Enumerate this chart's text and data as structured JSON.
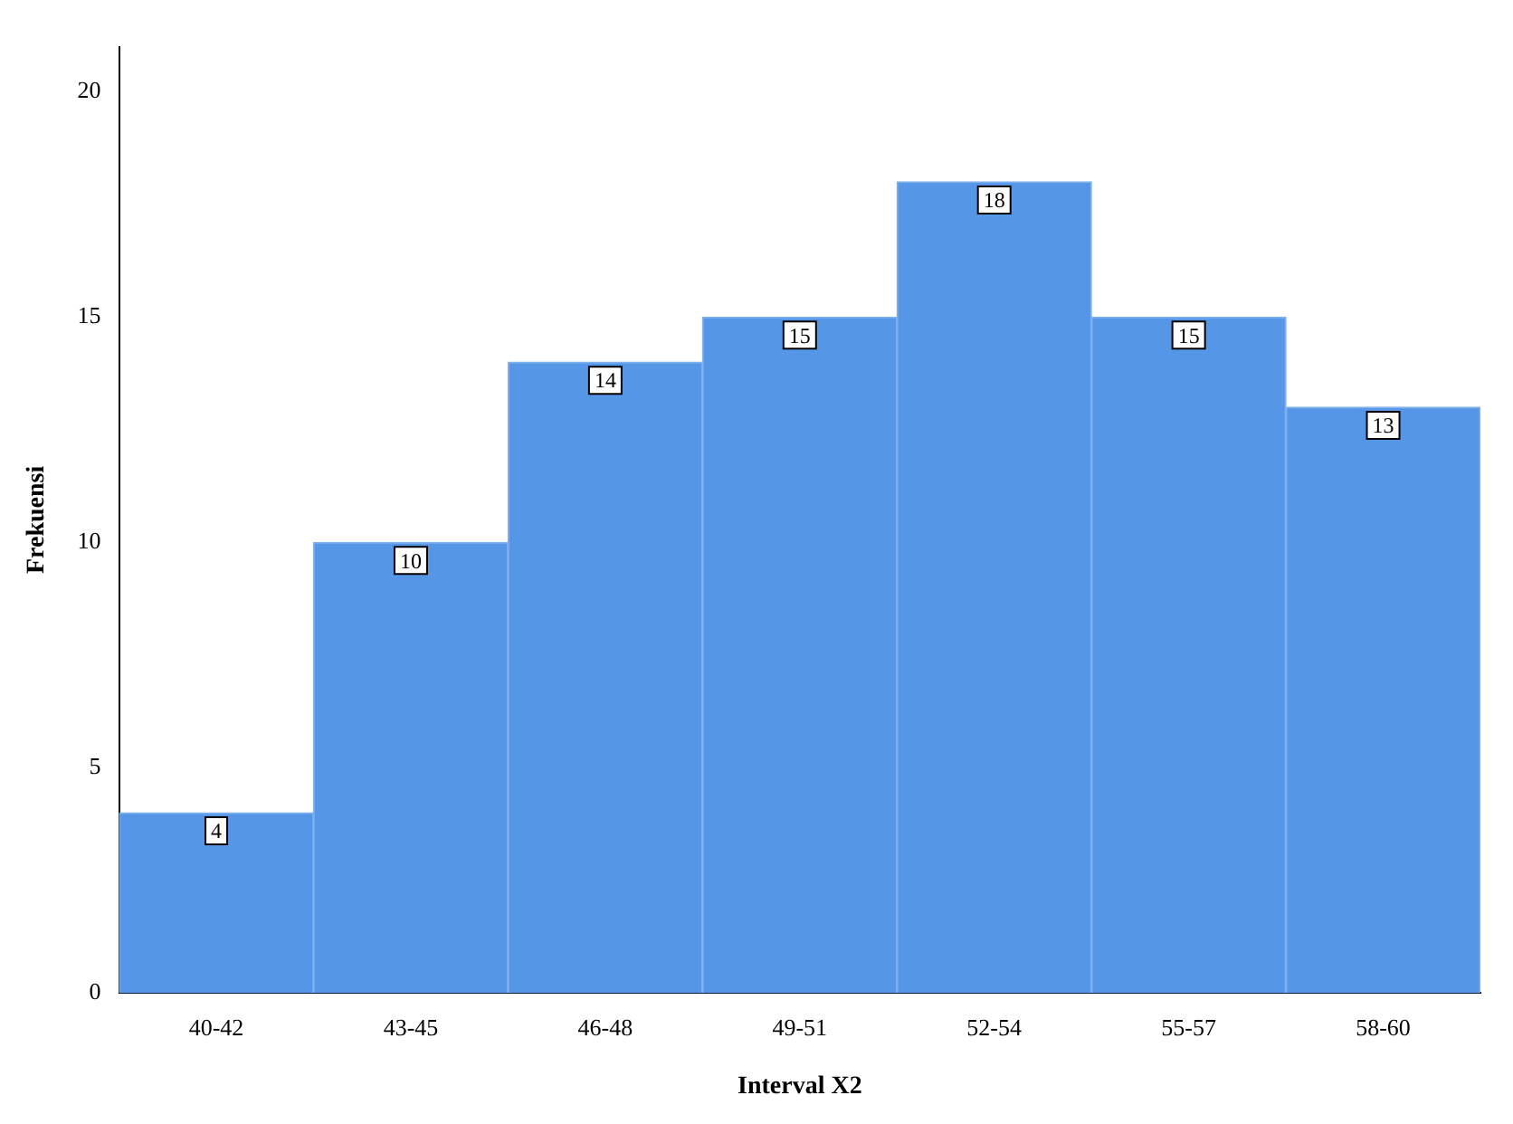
{
  "chart_data": {
    "type": "bar",
    "xlabel": "Interval X2",
    "ylabel": "Frekuensi",
    "categories": [
      "40-42",
      "43-45",
      "46-48",
      "49-51",
      "52-54",
      "55-57",
      "58-60"
    ],
    "values": [
      4,
      10,
      14,
      15,
      18,
      15,
      13
    ],
    "color": "#5596e6",
    "ylim": [
      0,
      21
    ],
    "yticks": [
      0,
      5,
      10,
      15,
      20
    ],
    "grid": false,
    "legend": false,
    "data_labels": true
  }
}
